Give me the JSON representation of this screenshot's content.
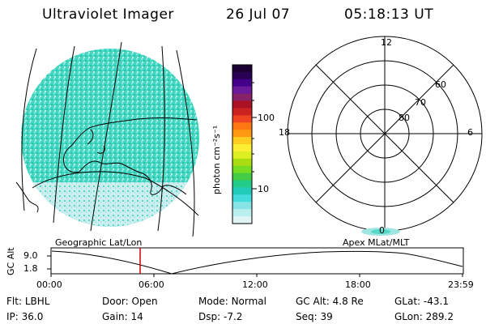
{
  "header": {
    "instrument": "Ultraviolet Imager",
    "date": "26 Jul 07",
    "time": "05:18:13 UT"
  },
  "colorbar": {
    "unit_label": "photon cm⁻²s⁻¹",
    "ticks": [
      "100",
      "10"
    ],
    "colors": [
      "#1a0033",
      "#2a0055",
      "#440088",
      "#6a1a9a",
      "#882266",
      "#aa1122",
      "#cc2222",
      "#ee4422",
      "#ff7711",
      "#ff9911",
      "#ffcc22",
      "#ffee33",
      "#ddee22",
      "#aadd11",
      "#77dd22",
      "#44cc44",
      "#22cc88",
      "#22ccbb",
      "#44dddd",
      "#88e4e4",
      "#bbeeee",
      "#e0f4f4"
    ]
  },
  "polar_plot": {
    "hour_labels": {
      "top": "12",
      "left": "18",
      "right": "6",
      "bottom": "0"
    },
    "latitude_labels": [
      "60",
      "70",
      "80"
    ]
  },
  "map_labels": {
    "left": "Geographic Lat/Lon",
    "right": "Apex MLat/MLT"
  },
  "altitude_panel": {
    "axis_title": "GC Alt",
    "y_ticks": [
      "9.0",
      "1.8"
    ],
    "time_ticks": [
      "00:00",
      "06:00",
      "12:00",
      "18:00",
      "23:59"
    ]
  },
  "status": {
    "row1": [
      {
        "label": "Flt:",
        "value": "LBHL"
      },
      {
        "label": "Door:",
        "value": "Open"
      },
      {
        "label": "Mode:",
        "value": "Normal"
      },
      {
        "label": "GC Alt:",
        "value": "4.8 Re"
      },
      {
        "label": "GLat:",
        "value": "-43.1"
      }
    ],
    "row2": [
      {
        "label": "IP:",
        "value": "36.0"
      },
      {
        "label": "Gain:",
        "value": "14"
      },
      {
        "label": "Dsp:",
        "value": "-7.2"
      },
      {
        "label": "Seq:",
        "value": "39"
      },
      {
        "label": "GLon:",
        "value": "289.2"
      }
    ]
  },
  "colors": {
    "marker": "#cc0000",
    "auroral_fill": "#55d8c8",
    "auroral_light": "#c8eeee"
  }
}
